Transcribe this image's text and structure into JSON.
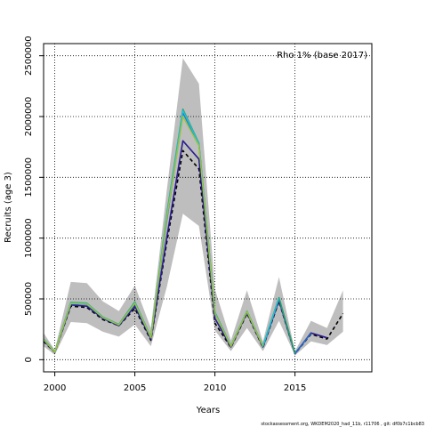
{
  "chart_data": {
    "type": "line",
    "title": "",
    "xlabel": "Years",
    "ylabel": "Recruits (age 3)",
    "annotation": "Rho 1% (base 2017)",
    "footer": "stockassessment.org,  WKDEM2020_had_11b,  r11706 ,  git:  df0b7c1bcb83",
    "xlim": [
      1999.3,
      2019.8
    ],
    "ylim": [
      -100000,
      2600000
    ],
    "xticks": [
      2000,
      2005,
      2010,
      2015
    ],
    "xtick_labels": [
      "2000",
      "2005",
      "2010",
      "2015"
    ],
    "yticks": [
      0,
      500000,
      1000000,
      1500000,
      2000000,
      2500000
    ],
    "ytick_labels": [
      "0",
      "500000",
      "1000000",
      "1500000",
      "2000000",
      "2500000"
    ],
    "grid": true,
    "band": {
      "x": [
        1999.3,
        2000,
        2001,
        2002,
        2003,
        2004,
        2005,
        2006,
        2007,
        2008,
        2009,
        2010,
        2011,
        2012,
        2013,
        2014,
        2015,
        2016,
        2017,
        2018
      ],
      "upper": [
        220000,
        80000,
        640000,
        630000,
        480000,
        400000,
        610000,
        260000,
        1400000,
        2480000,
        2270000,
        580000,
        160000,
        570000,
        150000,
        680000,
        70000,
        320000,
        260000,
        570000
      ],
      "lower": [
        110000,
        40000,
        310000,
        300000,
        230000,
        190000,
        290000,
        110000,
        600000,
        1200000,
        1100000,
        240000,
        70000,
        260000,
        70000,
        320000,
        35000,
        150000,
        120000,
        230000
      ]
    },
    "series": [
      {
        "color": "#000000",
        "dashed": true,
        "width": 1.6,
        "x": [
          1999.3,
          2000,
          2001,
          2002,
          2003,
          2004,
          2005,
          2006,
          2007,
          2008,
          2009,
          2010,
          2011,
          2012,
          2013,
          2014,
          2015,
          2016,
          2017,
          2018
        ],
        "values": [
          150000,
          60000,
          440000,
          430000,
          330000,
          280000,
          420000,
          160000,
          970000,
          1720000,
          1570000,
          300000,
          100000,
          380000,
          100000,
          480000,
          50000,
          210000,
          170000,
          380000
        ]
      },
      {
        "color": "#2b1d8f",
        "dashed": false,
        "width": 1.6,
        "x": [
          1999.3,
          2000,
          2001,
          2002,
          2003,
          2004,
          2005,
          2006,
          2007,
          2008,
          2009,
          2010,
          2011,
          2012,
          2013,
          2014,
          2015,
          2016,
          2017
        ],
        "values": [
          160000,
          60000,
          450000,
          440000,
          340000,
          280000,
          440000,
          170000,
          1010000,
          1800000,
          1650000,
          340000,
          105000,
          390000,
          105000,
          490000,
          50000,
          220000,
          180000
        ]
      },
      {
        "color": "#1f6fd0",
        "dashed": false,
        "width": 1.4,
        "x": [
          1999.3,
          2000,
          2001,
          2002,
          2003,
          2004,
          2005,
          2006,
          2007,
          2008,
          2009,
          2010,
          2011,
          2012,
          2013,
          2014,
          2015,
          2016
        ],
        "values": [
          165000,
          62000,
          460000,
          455000,
          345000,
          285000,
          460000,
          180000,
          1150000,
          2030000,
          1770000,
          380000,
          110000,
          395000,
          110000,
          500000,
          52000,
          215000
        ]
      },
      {
        "color": "#2a9e6a",
        "dashed": false,
        "width": 1.6,
        "x": [
          1999.3,
          2000,
          2001,
          2002,
          2003,
          2004,
          2005,
          2006,
          2007,
          2008,
          2009,
          2010,
          2011,
          2012,
          2013,
          2014,
          2015
        ],
        "values": [
          170000,
          63000,
          470000,
          465000,
          350000,
          290000,
          475000,
          185000,
          1200000,
          2060000,
          1780000,
          390000,
          112000,
          400000,
          112000,
          510000,
          53000
        ]
      },
      {
        "color": "#22c1d6",
        "dashed": false,
        "width": 1.4,
        "x": [
          1999.3,
          2000,
          2001,
          2002,
          2003,
          2004,
          2005,
          2006,
          2007,
          2008,
          2009,
          2010,
          2011,
          2012,
          2013,
          2014
        ],
        "values": [
          168000,
          62000,
          468000,
          462000,
          348000,
          288000,
          470000,
          183000,
          1190000,
          2050000,
          1775000,
          385000,
          111000,
          398000,
          111000,
          505000
        ]
      },
      {
        "color": "#9ec23a",
        "dashed": false,
        "width": 1.4,
        "x": [
          1999.3,
          2000,
          2001,
          2002,
          2003,
          2004,
          2005,
          2006,
          2007,
          2008,
          2009,
          2010,
          2011,
          2012,
          2013
        ],
        "values": [
          166000,
          61000,
          462000,
          458000,
          346000,
          286000,
          465000,
          181000,
          1170000,
          2000000,
          1760000,
          380000,
          110000,
          396000,
          110000
        ]
      }
    ]
  }
}
